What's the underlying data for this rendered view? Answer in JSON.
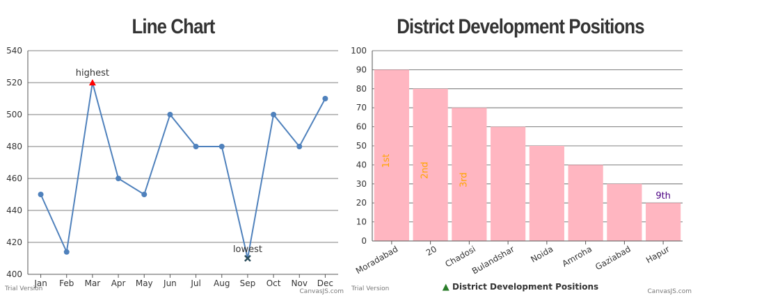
{
  "chart_data": [
    {
      "type": "line",
      "title": "Line Chart",
      "categories": [
        "Jan",
        "Feb",
        "Mar",
        "Apr",
        "May",
        "Jun",
        "Jul",
        "Aug",
        "Sep",
        "Oct",
        "Nov",
        "Dec"
      ],
      "values": [
        450,
        414,
        520,
        460,
        450,
        500,
        480,
        480,
        410,
        500,
        480,
        510
      ],
      "ylim": [
        400,
        540
      ],
      "yticks": [
        400,
        420,
        440,
        460,
        480,
        500,
        520,
        540
      ],
      "annotations": [
        {
          "category": "Mar",
          "label": "highest",
          "marker": "triangle",
          "color": "#ff0000"
        },
        {
          "category": "Sep",
          "label": "lowest",
          "marker": "cross",
          "color": "#2b4d5c"
        }
      ],
      "line_color": "#4f81bc",
      "grid": true
    },
    {
      "type": "bar",
      "title": "District Development Positions",
      "categories": [
        "Moradabad",
        "20",
        "Chadosi",
        "Bulandshar",
        "Noida",
        "Amroha",
        "Gaziabad",
        "Hapur"
      ],
      "values": [
        90,
        80,
        70,
        60,
        50,
        40,
        30,
        20
      ],
      "ylim": [
        0,
        100
      ],
      "yticks": [
        0,
        10,
        20,
        30,
        40,
        50,
        60,
        70,
        80,
        90,
        100
      ],
      "bar_labels": [
        "1st",
        "2nd",
        "3rd",
        "",
        "",
        "",
        "",
        "9th"
      ],
      "bar_color": "#ffb6c1",
      "legend": "District Development Positions",
      "grid": true
    }
  ],
  "credits": {
    "trial": "Trial Version",
    "brand": "CanvasJS.com"
  },
  "colors": {
    "label_orange": "#ffa500",
    "label_purple": "#4b0082",
    "legend_marker": "#2a7d2a"
  }
}
